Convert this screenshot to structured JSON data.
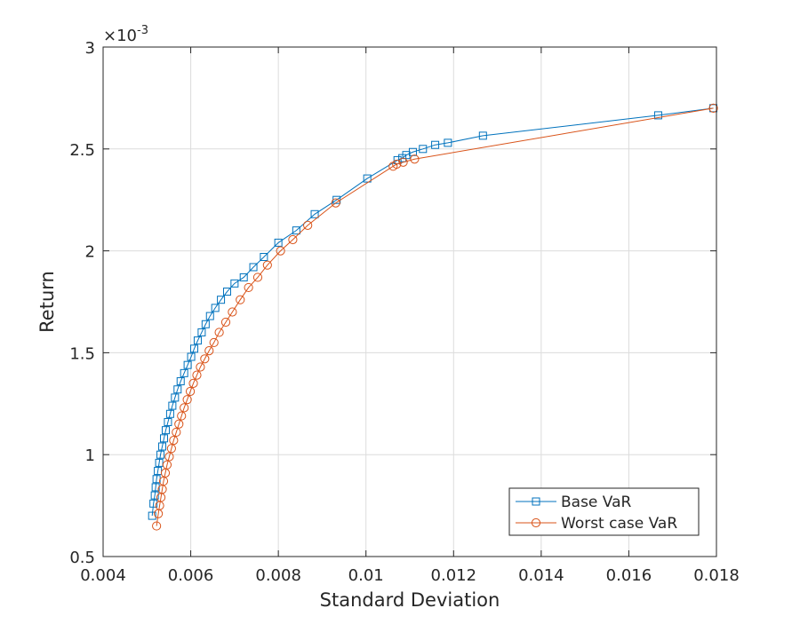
{
  "chart_data": {
    "type": "line",
    "xlabel": "Standard Deviation",
    "ylabel": "Return",
    "exponent_label": {
      "base": "×10",
      "power": "-3"
    },
    "xlim": [
      0.004,
      0.018
    ],
    "ylim": [
      0.5,
      3.0
    ],
    "x_ticks": [
      0.004,
      0.006,
      0.008,
      0.01,
      0.012,
      0.014,
      0.016,
      0.018
    ],
    "x_tick_labels": [
      "0.004",
      "0.006",
      "0.008",
      "0.01",
      "0.012",
      "0.014",
      "0.016",
      "0.018"
    ],
    "y_ticks": [
      0.5,
      1.0,
      1.5,
      2.0,
      2.5,
      3.0
    ],
    "y_tick_labels": [
      "0.5",
      "1",
      "1.5",
      "2",
      "2.5",
      "3"
    ],
    "y_units_note": "y values in units of 10^-3",
    "grid": true,
    "legend_position": "bottom-right",
    "series": [
      {
        "name": "Base VaR",
        "color": "#0072BD",
        "marker": "square",
        "points": [
          [
            0.00512,
            0.7
          ],
          [
            0.00515,
            0.76
          ],
          [
            0.00518,
            0.8
          ],
          [
            0.0052,
            0.84
          ],
          [
            0.00522,
            0.88
          ],
          [
            0.00525,
            0.92
          ],
          [
            0.00528,
            0.96
          ],
          [
            0.00531,
            1.0
          ],
          [
            0.00535,
            1.04
          ],
          [
            0.00539,
            1.08
          ],
          [
            0.00543,
            1.12
          ],
          [
            0.00548,
            1.16
          ],
          [
            0.00553,
            1.2
          ],
          [
            0.00558,
            1.24
          ],
          [
            0.00564,
            1.28
          ],
          [
            0.0057,
            1.32
          ],
          [
            0.00577,
            1.36
          ],
          [
            0.00585,
            1.4
          ],
          [
            0.00593,
            1.44
          ],
          [
            0.00601,
            1.48
          ],
          [
            0.00608,
            1.52
          ],
          [
            0.00616,
            1.56
          ],
          [
            0.00625,
            1.6
          ],
          [
            0.00634,
            1.64
          ],
          [
            0.00644,
            1.68
          ],
          [
            0.00656,
            1.72
          ],
          [
            0.00669,
            1.76
          ],
          [
            0.00683,
            1.8
          ],
          [
            0.007,
            1.84
          ],
          [
            0.00721,
            1.87
          ],
          [
            0.00743,
            1.92
          ],
          [
            0.00767,
            1.97
          ],
          [
            0.008,
            2.04
          ],
          [
            0.00841,
            2.1
          ],
          [
            0.00883,
            2.18
          ],
          [
            0.00933,
            2.25
          ],
          [
            0.01003,
            2.355
          ],
          [
            0.01072,
            2.445
          ],
          [
            0.01083,
            2.455
          ],
          [
            0.01092,
            2.47
          ],
          [
            0.01107,
            2.485
          ],
          [
            0.0113,
            2.5
          ],
          [
            0.01158,
            2.52
          ],
          [
            0.01187,
            2.53
          ],
          [
            0.01267,
            2.565
          ],
          [
            0.01667,
            2.665
          ],
          [
            0.01793,
            2.7
          ]
        ]
      },
      {
        "name": "Worst case VaR",
        "color": "#D95319",
        "marker": "circle",
        "points": [
          [
            0.00522,
            0.65
          ],
          [
            0.00526,
            0.71
          ],
          [
            0.00529,
            0.75
          ],
          [
            0.00532,
            0.79
          ],
          [
            0.00535,
            0.83
          ],
          [
            0.00538,
            0.87
          ],
          [
            0.00542,
            0.91
          ],
          [
            0.00546,
            0.95
          ],
          [
            0.00551,
            0.99
          ],
          [
            0.00556,
            1.03
          ],
          [
            0.00561,
            1.07
          ],
          [
            0.00567,
            1.11
          ],
          [
            0.00573,
            1.15
          ],
          [
            0.00579,
            1.19
          ],
          [
            0.00585,
            1.23
          ],
          [
            0.00592,
            1.27
          ],
          [
            0.00599,
            1.31
          ],
          [
            0.00606,
            1.35
          ],
          [
            0.00614,
            1.39
          ],
          [
            0.00622,
            1.43
          ],
          [
            0.00632,
            1.47
          ],
          [
            0.00642,
            1.51
          ],
          [
            0.00653,
            1.55
          ],
          [
            0.00665,
            1.6
          ],
          [
            0.0068,
            1.65
          ],
          [
            0.00695,
            1.7
          ],
          [
            0.00713,
            1.76
          ],
          [
            0.00732,
            1.82
          ],
          [
            0.00753,
            1.87
          ],
          [
            0.00775,
            1.93
          ],
          [
            0.00805,
            2.0
          ],
          [
            0.00833,
            2.055
          ],
          [
            0.00867,
            2.125
          ],
          [
            0.00931,
            2.235
          ],
          [
            0.01062,
            2.415
          ],
          [
            0.0107,
            2.425
          ],
          [
            0.01085,
            2.435
          ],
          [
            0.01111,
            2.45
          ],
          [
            0.01793,
            2.7
          ]
        ]
      }
    ]
  }
}
